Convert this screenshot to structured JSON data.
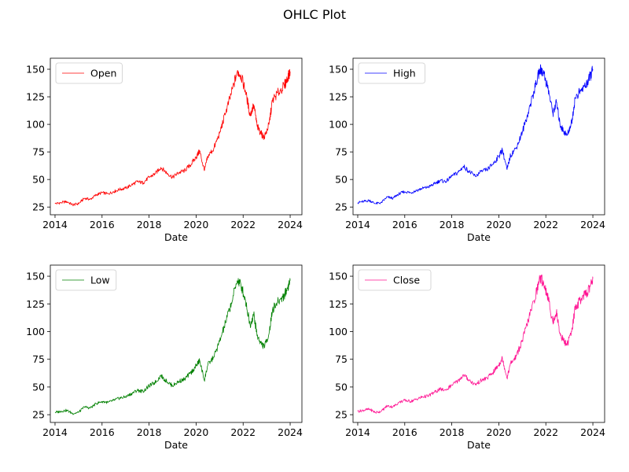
{
  "figure": {
    "title": "OHLC Plot"
  },
  "chart_data": [
    {
      "type": "line",
      "xlabel": "Date",
      "ylabel": "",
      "xlim": [
        2013.8,
        2024.5
      ],
      "ylim": [
        18,
        160
      ],
      "xticks": [
        2014,
        2016,
        2018,
        2020,
        2022,
        2024
      ],
      "xtick_labels": [
        "2014",
        "2016",
        "2018",
        "2020",
        "2022",
        "2024"
      ],
      "yticks": [
        25,
        50,
        75,
        100,
        125,
        150
      ],
      "ytick_labels": [
        "25",
        "50",
        "75",
        "100",
        "125",
        "150"
      ],
      "legend_position": "upper-left",
      "grid": false,
      "series": [
        {
          "name": "Open",
          "color": "#ff0000",
          "x": [
            2014.0,
            2014.25,
            2014.5,
            2014.75,
            2015.0,
            2015.25,
            2015.5,
            2015.75,
            2016.0,
            2016.25,
            2016.5,
            2016.75,
            2017.0,
            2017.25,
            2017.5,
            2017.75,
            2018.0,
            2018.25,
            2018.5,
            2018.75,
            2019.0,
            2019.25,
            2019.5,
            2019.75,
            2020.0,
            2020.15,
            2020.35,
            2020.5,
            2020.75,
            2021.0,
            2021.25,
            2021.5,
            2021.75,
            2021.9,
            2022.1,
            2022.3,
            2022.45,
            2022.6,
            2022.75,
            2022.9,
            2023.1,
            2023.25,
            2023.5,
            2023.75,
            2023.9,
            2024.0
          ],
          "y": [
            28,
            29,
            30,
            27,
            28,
            33,
            32,
            36,
            38,
            37,
            39,
            41,
            42,
            45,
            48,
            47,
            52,
            55,
            61,
            56,
            52,
            56,
            58,
            63,
            70,
            76,
            58,
            71,
            78,
            92,
            110,
            128,
            148,
            145,
            130,
            108,
            118,
            98,
            92,
            88,
            100,
            122,
            129,
            135,
            142,
            148
          ]
        }
      ]
    },
    {
      "type": "line",
      "xlabel": "Date",
      "ylabel": "",
      "xlim": [
        2013.8,
        2024.5
      ],
      "ylim": [
        18,
        160
      ],
      "xticks": [
        2014,
        2016,
        2018,
        2020,
        2022,
        2024
      ],
      "xtick_labels": [
        "2014",
        "2016",
        "2018",
        "2020",
        "2022",
        "2024"
      ],
      "yticks": [
        25,
        50,
        75,
        100,
        125,
        150
      ],
      "ytick_labels": [
        "25",
        "50",
        "75",
        "100",
        "125",
        "150"
      ],
      "legend_position": "upper-left",
      "grid": false,
      "series": [
        {
          "name": "High",
          "color": "#0000ff",
          "x": [
            2014.0,
            2014.25,
            2014.5,
            2014.75,
            2015.0,
            2015.25,
            2015.5,
            2015.75,
            2016.0,
            2016.25,
            2016.5,
            2016.75,
            2017.0,
            2017.25,
            2017.5,
            2017.75,
            2018.0,
            2018.25,
            2018.5,
            2018.75,
            2019.0,
            2019.25,
            2019.5,
            2019.75,
            2020.0,
            2020.15,
            2020.35,
            2020.5,
            2020.75,
            2021.0,
            2021.25,
            2021.5,
            2021.75,
            2021.9,
            2022.1,
            2022.3,
            2022.45,
            2022.6,
            2022.75,
            2022.9,
            2023.1,
            2023.25,
            2023.5,
            2023.75,
            2023.9,
            2024.0
          ],
          "y": [
            29,
            30,
            31,
            28,
            29,
            34,
            33,
            37,
            39,
            38,
            40,
            42,
            43,
            46,
            49,
            48,
            53,
            56,
            62,
            57,
            53,
            57,
            59,
            64,
            71,
            77,
            59,
            72,
            79,
            93,
            111,
            130,
            150,
            147,
            132,
            110,
            120,
            100,
            94,
            90,
            102,
            124,
            131,
            137,
            144,
            150
          ]
        }
      ]
    },
    {
      "type": "line",
      "xlabel": "Date",
      "ylabel": "",
      "xlim": [
        2013.8,
        2024.5
      ],
      "ylim": [
        18,
        160
      ],
      "xticks": [
        2014,
        2016,
        2018,
        2020,
        2022,
        2024
      ],
      "xtick_labels": [
        "2014",
        "2016",
        "2018",
        "2020",
        "2022",
        "2024"
      ],
      "yticks": [
        25,
        50,
        75,
        100,
        125,
        150
      ],
      "ytick_labels": [
        "25",
        "50",
        "75",
        "100",
        "125",
        "150"
      ],
      "legend_position": "upper-left",
      "grid": false,
      "series": [
        {
          "name": "Low",
          "color": "#008000",
          "x": [
            2014.0,
            2014.25,
            2014.5,
            2014.75,
            2015.0,
            2015.25,
            2015.5,
            2015.75,
            2016.0,
            2016.25,
            2016.5,
            2016.75,
            2017.0,
            2017.25,
            2017.5,
            2017.75,
            2018.0,
            2018.25,
            2018.5,
            2018.75,
            2019.0,
            2019.25,
            2019.5,
            2019.75,
            2020.0,
            2020.15,
            2020.35,
            2020.5,
            2020.75,
            2021.0,
            2021.25,
            2021.5,
            2021.75,
            2021.9,
            2022.1,
            2022.3,
            2022.45,
            2022.6,
            2022.75,
            2022.9,
            2023.1,
            2023.25,
            2023.5,
            2023.75,
            2023.9,
            2024.0
          ],
          "y": [
            27,
            28,
            29,
            26,
            27,
            32,
            31,
            35,
            37,
            36,
            38,
            40,
            41,
            44,
            47,
            46,
            51,
            54,
            60,
            55,
            51,
            55,
            57,
            62,
            69,
            74,
            56,
            70,
            77,
            91,
            108,
            126,
            146,
            143,
            128,
            106,
            116,
            96,
            90,
            86,
            98,
            120,
            127,
            133,
            140,
            146
          ]
        }
      ]
    },
    {
      "type": "line",
      "xlabel": "Date",
      "ylabel": "",
      "xlim": [
        2013.8,
        2024.5
      ],
      "ylim": [
        18,
        160
      ],
      "xticks": [
        2014,
        2016,
        2018,
        2020,
        2022,
        2024
      ],
      "xtick_labels": [
        "2014",
        "2016",
        "2018",
        "2020",
        "2022",
        "2024"
      ],
      "yticks": [
        25,
        50,
        75,
        100,
        125,
        150
      ],
      "ytick_labels": [
        "25",
        "50",
        "75",
        "100",
        "125",
        "150"
      ],
      "legend_position": "upper-left",
      "grid": false,
      "series": [
        {
          "name": "Close",
          "color": "#ff1493",
          "x": [
            2014.0,
            2014.25,
            2014.5,
            2014.75,
            2015.0,
            2015.25,
            2015.5,
            2015.75,
            2016.0,
            2016.25,
            2016.5,
            2016.75,
            2017.0,
            2017.25,
            2017.5,
            2017.75,
            2018.0,
            2018.25,
            2018.5,
            2018.75,
            2019.0,
            2019.25,
            2019.5,
            2019.75,
            2020.0,
            2020.15,
            2020.35,
            2020.5,
            2020.75,
            2021.0,
            2021.25,
            2021.5,
            2021.75,
            2021.9,
            2022.1,
            2022.3,
            2022.45,
            2022.6,
            2022.75,
            2022.9,
            2023.1,
            2023.25,
            2023.5,
            2023.75,
            2023.9,
            2024.0
          ],
          "y": [
            28,
            29,
            30,
            27,
            28,
            33,
            32,
            36,
            38,
            37,
            39,
            41,
            42,
            45,
            48,
            47,
            52,
            55,
            61,
            56,
            52,
            56,
            58,
            63,
            70,
            76,
            58,
            71,
            78,
            92,
            110,
            128,
            148,
            145,
            130,
            108,
            118,
            98,
            92,
            88,
            100,
            122,
            129,
            135,
            142,
            148
          ]
        }
      ]
    }
  ]
}
